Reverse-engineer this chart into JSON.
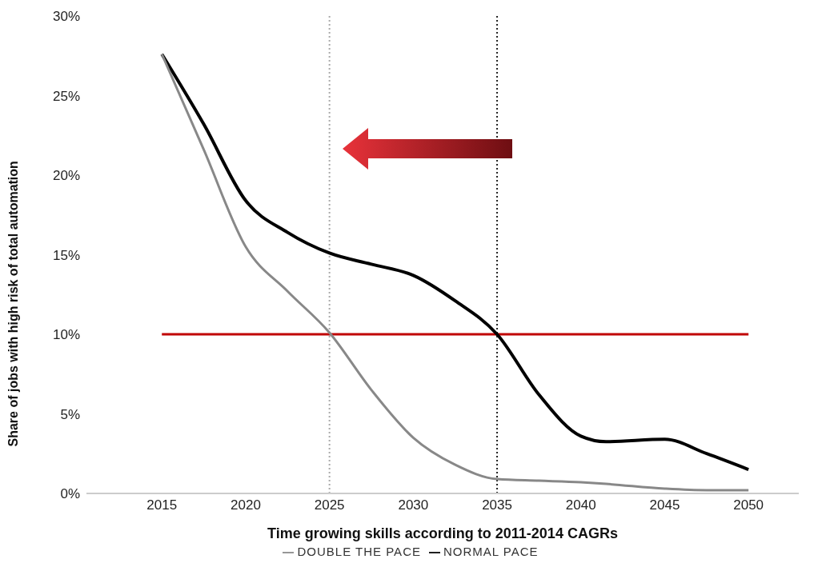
{
  "chart_data": {
    "type": "line",
    "xlabel": "Time growing skills according to 2011-2014 CAGRs",
    "ylabel": "Share of jobs with high risk of total automation",
    "x": [
      2015,
      2017.5,
      2020,
      2022.5,
      2025,
      2027.5,
      2030,
      2032.5,
      2035,
      2037.5,
      2040,
      2041.5,
      2045,
      2047.5,
      2050
    ],
    "series": [
      {
        "name": "NORMAL PACE",
        "color": "#000000",
        "values": [
          27.6,
          23.2,
          18.4,
          16.4,
          15.1,
          14.4,
          13.7,
          12.1,
          10.0,
          6.2,
          3.6,
          3.25,
          3.4,
          2.5,
          1.5
        ]
      },
      {
        "name": "DOUBLE THE PACE",
        "color": "#888888",
        "values": [
          27.6,
          21.6,
          15.5,
          12.7,
          10.1,
          6.5,
          3.5,
          1.8,
          0.9,
          0.8,
          0.7,
          0.6,
          0.3,
          0.2,
          0.2
        ]
      }
    ],
    "xlim": [
      2010.5,
      2053
    ],
    "xticks": [
      2015,
      2020,
      2025,
      2030,
      2035,
      2040,
      2045,
      2050
    ],
    "ylim": [
      0,
      30
    ],
    "yticks": [
      {
        "value": 0,
        "label": "0%"
      },
      {
        "value": 5,
        "label": "5%"
      },
      {
        "value": 10,
        "label": "10%"
      },
      {
        "value": 15,
        "label": "15%"
      },
      {
        "value": 20,
        "label": "20%"
      },
      {
        "value": 25,
        "label": "25%"
      },
      {
        "value": 30,
        "label": "30%"
      }
    ],
    "ref_lines": [
      {
        "axis": "y",
        "value": 10,
        "color": "#c00000",
        "line_style": "solid"
      },
      {
        "axis": "x",
        "value": 2025,
        "color": "#aaaaaa",
        "line_style": "dotted"
      },
      {
        "axis": "x",
        "value": 2035,
        "color": "#222222",
        "line_style": "dotted"
      }
    ],
    "grid": false,
    "legend": "bottom",
    "marker": "none",
    "line_style": "solid"
  }
}
